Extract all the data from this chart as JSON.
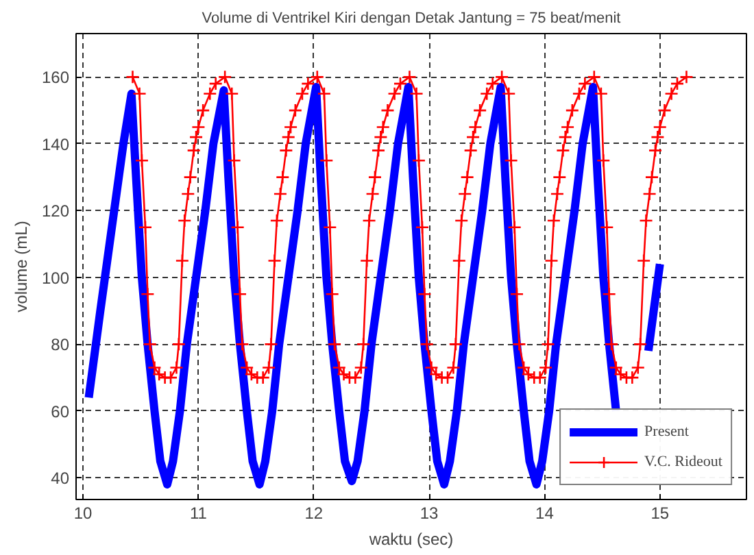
{
  "chart_data": {
    "type": "line",
    "title": "Volume di Ventrikel Kiri dengan Detak Jantung = 75 beat/menit",
    "xlabel": "waktu (sec)",
    "ylabel": "volume (mL)",
    "xlim": [
      9.94,
      15.75
    ],
    "ylim": [
      33.5,
      173
    ],
    "xticks": [
      10,
      11,
      12,
      13,
      14,
      15
    ],
    "yticks": [
      40,
      60,
      80,
      100,
      120,
      140,
      160
    ],
    "grid": true,
    "legend": "bottom right",
    "series": [
      {
        "name": "Present",
        "color": "#0000ff",
        "marker": "none",
        "x": [
          10.05,
          10.15,
          10.25,
          10.35,
          10.42,
          10.46,
          10.51,
          10.56,
          10.62,
          10.67,
          10.73,
          10.78,
          10.84,
          10.9,
          10.98,
          11.06,
          11.13,
          11.22,
          11.26,
          11.31,
          11.36,
          11.42,
          11.47,
          11.53,
          11.58,
          11.64,
          11.7,
          11.78,
          11.86,
          11.93,
          12.02,
          12.06,
          12.11,
          12.16,
          12.22,
          12.27,
          12.33,
          12.38,
          12.44,
          12.5,
          12.58,
          12.66,
          12.73,
          12.82,
          12.86,
          12.91,
          12.96,
          13.02,
          13.07,
          13.13,
          13.18,
          13.24,
          13.3,
          13.38,
          13.46,
          13.53,
          13.62,
          13.66,
          13.71,
          13.76,
          13.82,
          13.87,
          13.93,
          13.98,
          14.04,
          14.1,
          14.18,
          14.26,
          14.33,
          14.42,
          14.46,
          14.51,
          14.56,
          14.62,
          14.67,
          14.73,
          14.8,
          14.9,
          15.0
        ],
        "values": [
          64,
          90,
          115,
          140,
          155,
          130,
          100,
          80,
          60,
          45,
          38,
          45,
          60,
          80,
          100,
          120,
          140,
          156,
          130,
          100,
          80,
          60,
          45,
          38,
          45,
          60,
          80,
          100,
          120,
          140,
          157,
          130,
          100,
          80,
          60,
          45,
          39,
          45,
          60,
          80,
          100,
          120,
          140,
          157,
          130,
          100,
          80,
          60,
          45,
          38,
          45,
          60,
          80,
          100,
          120,
          140,
          157,
          130,
          100,
          80,
          60,
          45,
          38,
          45,
          60,
          80,
          100,
          120,
          140,
          157,
          130,
          100,
          80,
          60,
          null,
          null,
          null,
          78,
          104
        ]
      },
      {
        "name": "V.C. Rideout",
        "color": "#ff0000",
        "marker": "cross",
        "x": [
          10.43,
          10.49,
          10.51,
          10.54,
          10.56,
          10.58,
          10.62,
          10.66,
          10.71,
          10.76,
          10.81,
          10.83,
          10.86,
          10.88,
          10.91,
          10.93,
          10.96,
          10.98,
          11.0,
          11.04,
          11.1,
          11.15,
          11.23,
          11.29,
          11.31,
          11.34,
          11.36,
          11.38,
          11.42,
          11.46,
          11.51,
          11.56,
          11.61,
          11.63,
          11.66,
          11.68,
          11.71,
          11.73,
          11.76,
          11.78,
          11.8,
          11.84,
          11.9,
          11.95,
          12.03,
          12.09,
          12.11,
          12.14,
          12.16,
          12.18,
          12.22,
          12.26,
          12.31,
          12.36,
          12.41,
          12.43,
          12.46,
          12.48,
          12.51,
          12.53,
          12.56,
          12.58,
          12.6,
          12.64,
          12.7,
          12.75,
          12.83,
          12.89,
          12.91,
          12.94,
          12.96,
          12.98,
          13.02,
          13.06,
          13.11,
          13.16,
          13.21,
          13.23,
          13.26,
          13.28,
          13.31,
          13.33,
          13.36,
          13.38,
          13.4,
          13.44,
          13.5,
          13.55,
          13.63,
          13.69,
          13.71,
          13.74,
          13.76,
          13.78,
          13.82,
          13.86,
          13.91,
          13.96,
          14.01,
          14.03,
          14.06,
          14.08,
          14.11,
          14.13,
          14.16,
          14.18,
          14.2,
          14.24,
          14.3,
          14.35,
          14.43,
          14.49,
          14.51,
          14.54,
          14.56,
          14.58,
          14.62,
          14.66,
          14.71,
          14.76,
          14.81,
          14.83,
          14.86,
          14.88,
          14.91,
          14.93,
          14.96,
          14.98,
          15.0,
          15.04,
          15.1,
          15.15,
          15.23
        ],
        "values": [
          160,
          155,
          135,
          115,
          95,
          80,
          73,
          71,
          70,
          70,
          73,
          80,
          105,
          117,
          125,
          130,
          138,
          142,
          145,
          150,
          155,
          158,
          160,
          155,
          135,
          115,
          95,
          80,
          73,
          71,
          70,
          70,
          73,
          80,
          105,
          117,
          125,
          130,
          138,
          142,
          145,
          150,
          155,
          158,
          160,
          155,
          135,
          115,
          95,
          80,
          73,
          71,
          70,
          70,
          73,
          80,
          105,
          117,
          125,
          130,
          138,
          142,
          145,
          150,
          155,
          158,
          160,
          155,
          135,
          115,
          95,
          80,
          73,
          71,
          70,
          70,
          73,
          80,
          105,
          117,
          125,
          130,
          138,
          142,
          145,
          150,
          155,
          158,
          160,
          155,
          135,
          115,
          95,
          80,
          73,
          71,
          70,
          70,
          73,
          80,
          105,
          117,
          125,
          130,
          138,
          142,
          145,
          150,
          155,
          158,
          160,
          155,
          135,
          115,
          95,
          80,
          73,
          71,
          70,
          70,
          73,
          80,
          105,
          117,
          125,
          130,
          138,
          142,
          145,
          150,
          155,
          158,
          160
        ]
      }
    ]
  }
}
